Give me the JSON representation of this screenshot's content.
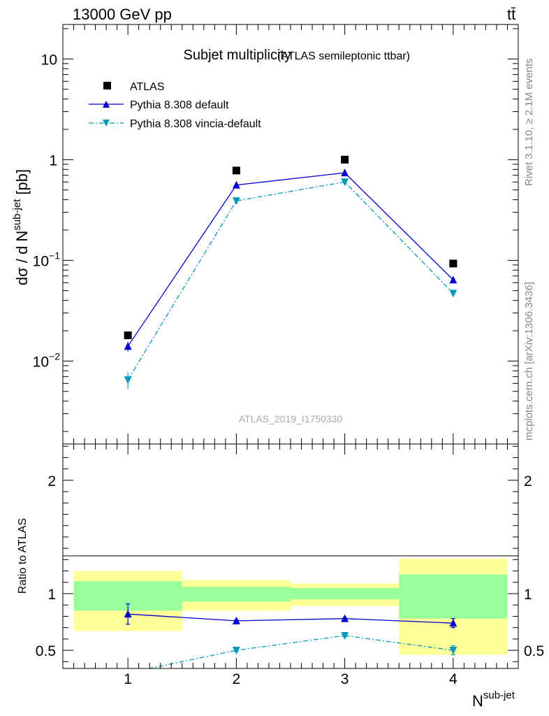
{
  "header": {
    "left_label": "13000 GeV pp",
    "right_label": "tt̄"
  },
  "side_labels": {
    "rivet": "Rivet 3.1.10, ≥ 2.1M events",
    "source": "mcplots.cern.ch [arXiv:1306.3436]"
  },
  "chart_data": [
    {
      "type": "scatter",
      "title": "Subjet multiplicity",
      "subtitle": "(ATLAS semileptonic ttbar)",
      "watermark": "ATLAS_2019_I1750330",
      "ylabel": {
        "main": "dσ / d N",
        "sup": "sub-jet",
        "unit": "[pb]"
      },
      "yscale": "log",
      "ylim": [
        0.0015,
        22
      ],
      "xlim": [
        0.4,
        4.6
      ],
      "yticks": [
        {
          "value": 10,
          "base": "10",
          "exp": ""
        },
        {
          "value": 1,
          "base": "1",
          "exp": ""
        },
        {
          "value": 0.1,
          "base": "10",
          "exp": "−1"
        },
        {
          "value": 0.01,
          "base": "10",
          "exp": "−2"
        }
      ],
      "legend_position": "top-left",
      "series": [
        {
          "name": "ATLAS",
          "color": "#000000",
          "marker": "square",
          "line": "none",
          "x": [
            1,
            2,
            3,
            4
          ],
          "y": [
            0.018,
            0.78,
            1.0,
            0.093
          ],
          "yerr": [
            0.001,
            0.03,
            0.04,
            0.004
          ]
        },
        {
          "name": "Pythia 8.308 default",
          "color": "#0000cc",
          "marker": "triangle-up",
          "line": "solid",
          "x": [
            1,
            2,
            3,
            4
          ],
          "y": [
            0.014,
            0.56,
            0.74,
            0.064
          ],
          "yerr": [
            0.0015,
            0.01,
            0.01,
            0.002
          ]
        },
        {
          "name": "Pythia 8.308 vincia-default",
          "color": "#0099bb",
          "marker": "triangle-down",
          "line": "dashdot",
          "x": [
            1,
            2,
            3,
            4
          ],
          "y": [
            0.0065,
            0.39,
            0.6,
            0.047
          ],
          "yerr": [
            0.0012,
            0.01,
            0.01,
            0.002
          ]
        }
      ]
    },
    {
      "type": "scatter",
      "ylabel": "Ratio to ATLAS",
      "xlabel": {
        "main": "N",
        "sup": "sub-jet"
      },
      "yscale": "linear",
      "ylim": [
        0.34,
        2.32
      ],
      "xlim": [
        0.4,
        4.6
      ],
      "reference_line": 1,
      "xticks": [
        1,
        2,
        3,
        4
      ],
      "yticks": [
        0.5,
        1,
        2
      ],
      "uncertainty_bands": [
        {
          "x0": 0.5,
          "x1": 1.5,
          "stat": [
            0.85,
            1.11
          ],
          "total": [
            0.67,
            1.2
          ]
        },
        {
          "x0": 1.5,
          "x1": 2.5,
          "stat": [
            0.93,
            1.06
          ],
          "total": [
            0.85,
            1.12
          ]
        },
        {
          "x0": 2.5,
          "x1": 3.5,
          "stat": [
            0.95,
            1.05
          ],
          "total": [
            0.89,
            1.09
          ]
        },
        {
          "x0": 3.5,
          "x1": 4.5,
          "stat": [
            0.78,
            1.17
          ],
          "total": [
            0.46,
            1.31
          ]
        }
      ],
      "band_colors": {
        "stat": "#99ff99",
        "total": "#ffff99"
      },
      "series": [
        {
          "name": "Pythia 8.308 default",
          "color": "#0000cc",
          "marker": "triangle-up",
          "line": "solid",
          "x": [
            1,
            2,
            3,
            4
          ],
          "y": [
            0.82,
            0.76,
            0.78,
            0.74
          ],
          "yerr": [
            0.09,
            0.01,
            0.01,
            0.04
          ]
        },
        {
          "name": "Pythia 8.308 vincia-default",
          "color": "#0099bb",
          "marker": "triangle-down",
          "line": "dashdot",
          "x": [
            1,
            2,
            3,
            4
          ],
          "y": [
            0.3,
            0.5,
            0.63,
            0.5
          ],
          "yerr": [
            0.05,
            0.01,
            0.01,
            0.04
          ]
        }
      ]
    }
  ]
}
